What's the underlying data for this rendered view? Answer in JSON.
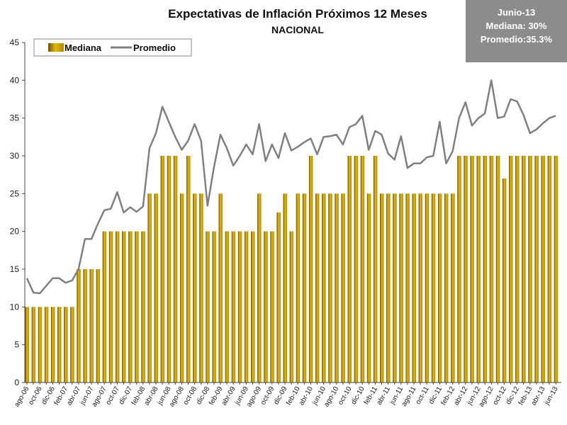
{
  "chart_data": {
    "type": "bar",
    "title": "Expectativas de Inflación Próximos 12 Meses",
    "subtitle": "NACIONAL",
    "xlabel": "",
    "ylabel": "",
    "ylim": [
      0,
      45
    ],
    "yticks": [
      0,
      5,
      10,
      15,
      20,
      25,
      30,
      35,
      40,
      45
    ],
    "grid": false,
    "legend_position": "top-left",
    "x_tick_labels": [
      "ago-06",
      "oct-06",
      "dic-06",
      "feb-07",
      "abr-07",
      "jun-07",
      "ago-07",
      "oct-07",
      "dic-07",
      "feb-08",
      "abr-08",
      "jun-08",
      "ago-08",
      "oct-08",
      "dic-08",
      "feb-09",
      "abr-09",
      "jun-09",
      "ago-09",
      "oct-09",
      "dic-09",
      "feb-10",
      "abr-10",
      "jun-10",
      "ago-10",
      "oct-10",
      "dic-10",
      "feb-11",
      "abr-11",
      "jun-11",
      "ago-11",
      "oct-11",
      "dic-11",
      "feb-12",
      "abr-12",
      "jun-12",
      "ago-12",
      "oct-12",
      "dic-12",
      "feb-13",
      "abr-13",
      "jun-13"
    ],
    "series": [
      {
        "name": "Mediana",
        "type": "bar",
        "color": "#d4a900",
        "values": [
          10,
          10,
          10,
          10,
          10,
          10,
          10,
          10,
          15,
          15,
          15,
          15,
          20,
          20,
          20,
          20,
          20,
          20,
          20,
          25,
          25,
          30,
          30,
          30,
          25,
          30,
          25,
          25,
          20,
          20,
          25,
          20,
          20,
          20,
          20,
          20,
          25,
          20,
          20,
          22.5,
          25,
          20,
          25,
          25,
          30,
          25,
          25,
          25,
          25,
          25,
          30,
          30,
          30,
          25,
          30,
          25,
          25,
          25,
          25,
          25,
          25,
          25,
          25,
          25,
          25,
          25,
          25,
          30,
          30,
          30,
          30,
          30,
          30,
          30,
          27,
          30,
          30,
          30,
          30,
          30,
          30,
          30,
          30
        ]
      },
      {
        "name": "Promedio",
        "type": "line",
        "color": "#808080",
        "values": [
          13.8,
          11.9,
          11.8,
          12.8,
          13.8,
          13.8,
          13.2,
          13.5,
          15,
          19,
          19,
          21,
          22.8,
          23,
          25.2,
          22.5,
          23.2,
          22.6,
          23.3,
          31,
          33,
          36.5,
          34.5,
          32.5,
          30.8,
          32,
          34.2,
          32,
          23.4,
          28.5,
          32.8,
          31,
          28.7,
          30,
          31.5,
          30.2,
          34.2,
          29.3,
          31.5,
          29.7,
          33,
          30.7,
          31.2,
          31.8,
          32.3,
          30.2,
          32.5,
          32.6,
          32.8,
          31.5,
          33.8,
          34.2,
          35.3,
          30.8,
          33.3,
          32.8,
          30.3,
          29.5,
          32.6,
          28.4,
          29,
          29,
          29.8,
          30,
          34.5,
          29,
          30.6,
          35,
          37.1,
          34,
          35,
          35.6,
          40,
          35,
          35.2,
          37.5,
          37.2,
          35.4,
          33,
          33.5,
          34.3,
          35,
          35.3
        ]
      }
    ]
  },
  "infobox": {
    "period": "Junio-13",
    "mediana": "Mediana: 30%",
    "promedio": "Promedio:35.3%"
  }
}
